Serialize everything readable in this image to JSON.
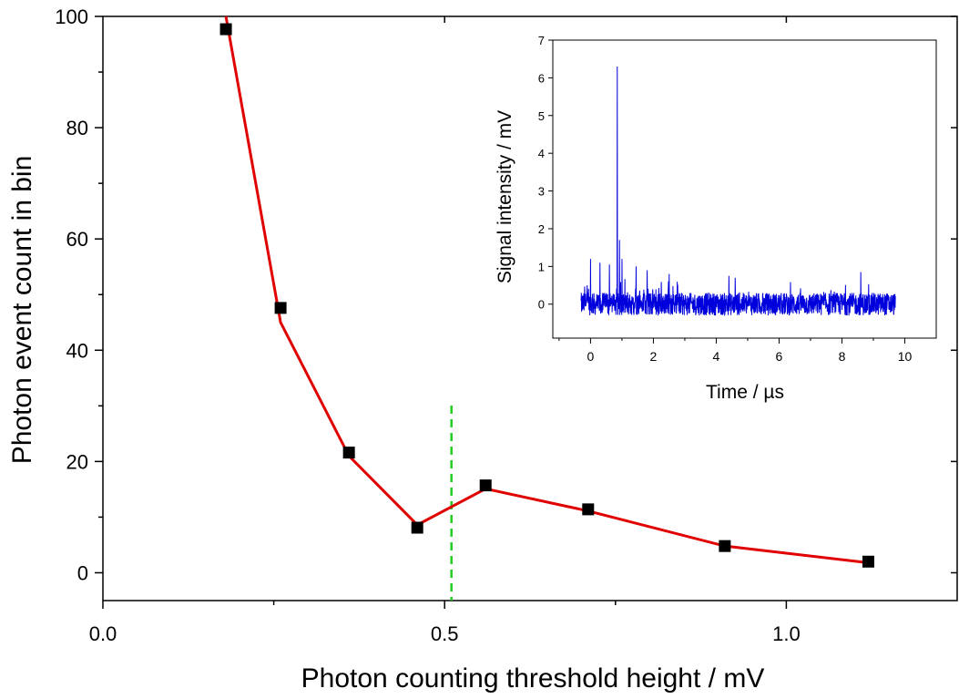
{
  "chart_data": [
    {
      "type": "scatter",
      "title": "",
      "xlabel": "Photon counting threshold height / mV",
      "ylabel": "Photon event count in bin",
      "xlim": [
        0.0,
        1.25
      ],
      "ylim": [
        -5,
        100
      ],
      "x_ticks": [
        "0.0",
        "0.5",
        "1.0"
      ],
      "x_tick_values": [
        0.0,
        0.5,
        1.0
      ],
      "y_ticks": [
        "0",
        "20",
        "40",
        "60",
        "80",
        "100"
      ],
      "y_tick_values": [
        0,
        20,
        40,
        60,
        80,
        100
      ],
      "grid": false,
      "series": [
        {
          "kind": "markers",
          "marker": "square",
          "color": "#000000",
          "x": [
            0.18,
            0.26,
            0.36,
            0.46,
            0.56,
            0.71,
            0.91,
            1.12
          ],
          "y": [
            97.7,
            47.6,
            21.6,
            8.1,
            15.7,
            11.4,
            4.8,
            2.0
          ]
        },
        {
          "kind": "line",
          "color": "#e00000",
          "x": [
            0.18,
            0.26,
            0.36,
            0.46,
            0.56,
            0.71,
            0.91,
            1.12
          ],
          "y": [
            100,
            45,
            21,
            8.6,
            15.1,
            11.1,
            4.8,
            1.8
          ]
        }
      ],
      "threshold_line": {
        "x": 0.51,
        "color": "#22cc22",
        "style": "dashed"
      }
    },
    {
      "type": "line",
      "title": "",
      "inset": true,
      "xlabel": "Time / µs",
      "ylabel": "Signal intensity / mV",
      "xlim": [
        -1.2,
        11.0
      ],
      "ylim": [
        -0.9,
        7.0
      ],
      "x_ticks": [
        "0",
        "2",
        "4",
        "6",
        "8",
        "10"
      ],
      "x_tick_values": [
        0,
        2,
        4,
        6,
        8,
        10
      ],
      "y_ticks": [
        "0",
        "1",
        "2",
        "3",
        "4",
        "5",
        "6",
        "7"
      ],
      "y_tick_values": [
        0,
        1,
        2,
        3,
        4,
        5,
        6,
        7
      ],
      "trace_color": "#0000dd",
      "trace_range_x": [
        -0.3,
        9.7
      ],
      "noise_band": [
        -0.3,
        0.3
      ],
      "spikes": [
        {
          "x": 0.85,
          "y": 6.3
        },
        {
          "x": 0.92,
          "y": 1.7
        },
        {
          "x": 1.0,
          "y": 1.2
        },
        {
          "x": 0.0,
          "y": 1.2
        },
        {
          "x": 0.3,
          "y": 1.1
        },
        {
          "x": 0.6,
          "y": 1.05
        },
        {
          "x": 1.45,
          "y": 1.0
        },
        {
          "x": 1.8,
          "y": 0.9
        },
        {
          "x": 2.5,
          "y": 0.8
        },
        {
          "x": 4.4,
          "y": 0.75
        },
        {
          "x": 4.6,
          "y": 0.7
        },
        {
          "x": 8.6,
          "y": 0.85
        }
      ]
    }
  ]
}
